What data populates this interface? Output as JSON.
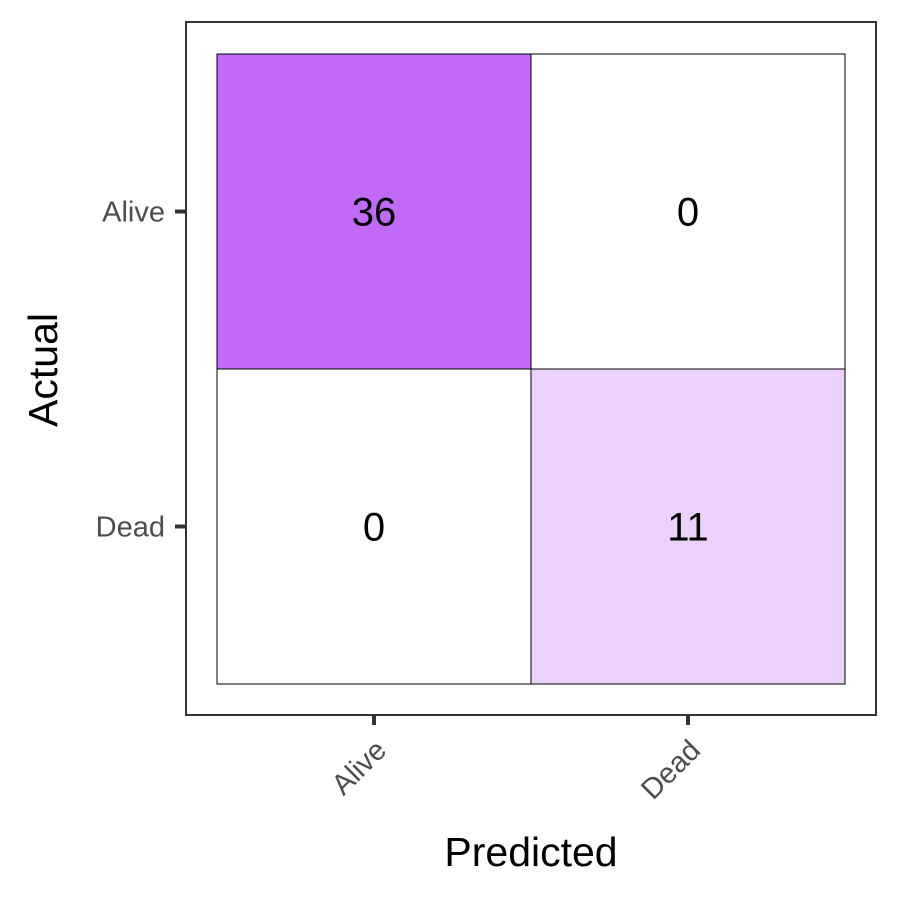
{
  "chart_data": {
    "type": "heatmap",
    "x_categories": [
      "Alive",
      "Dead"
    ],
    "y_categories": [
      "Alive",
      "Dead"
    ],
    "values": [
      [
        36,
        0
      ],
      [
        0,
        11
      ]
    ],
    "xlabel": "Predicted",
    "ylabel": "Actual",
    "color_low": "#ffffff",
    "color_high": "#c06af7",
    "grid": false
  }
}
